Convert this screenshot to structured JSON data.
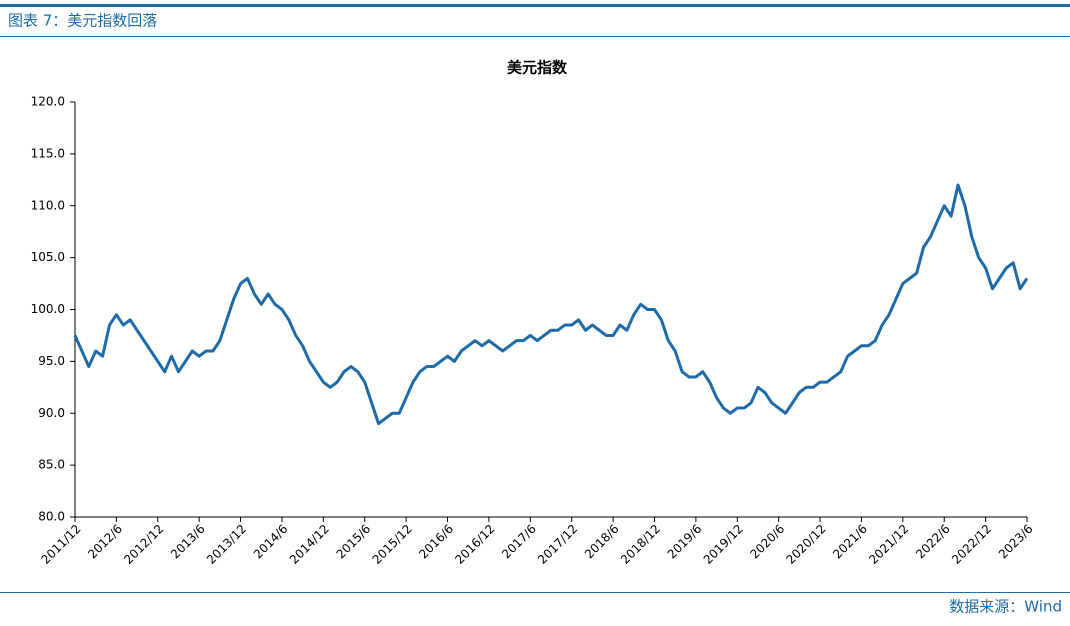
{
  "header": {
    "title": "图表 7：美元指数回落"
  },
  "source": "数据来源：Wind",
  "chart_data": {
    "type": "line",
    "title": "美元指数",
    "color": "#1f6aa8",
    "categories": [
      "2011/12",
      null,
      null,
      null,
      null,
      null,
      "2012/6",
      null,
      null,
      null,
      null,
      null,
      "2012/12",
      null,
      null,
      null,
      null,
      null,
      "2013/6",
      null,
      null,
      null,
      null,
      null,
      "2013/12",
      null,
      null,
      null,
      null,
      null,
      "2014/6",
      null,
      null,
      null,
      null,
      null,
      "2014/12",
      null,
      null,
      null,
      null,
      null,
      "2015/6",
      null,
      null,
      null,
      null,
      null,
      "2015/12",
      null,
      null,
      null,
      null,
      null,
      "2016/6",
      null,
      null,
      null,
      null,
      null,
      "2016/12",
      null,
      null,
      null,
      null,
      null,
      "2017/6",
      null,
      null,
      null,
      null,
      null,
      "2017/12",
      null,
      null,
      null,
      null,
      null,
      "2018/6",
      null,
      null,
      null,
      null,
      null,
      "2018/12",
      null,
      null,
      null,
      null,
      null,
      "2019/6",
      null,
      null,
      null,
      null,
      null,
      "2019/12",
      null,
      null,
      null,
      null,
      null,
      "2020/6",
      null,
      null,
      null,
      null,
      null,
      "2020/12",
      null,
      null,
      null,
      null,
      null,
      "2021/6",
      null,
      null,
      null,
      null,
      null,
      "2021/12",
      null,
      null,
      null,
      null,
      null,
      "2022/6",
      null,
      null,
      null,
      null,
      null,
      "2022/12",
      null,
      null,
      null,
      null,
      null,
      "2023/6"
    ],
    "values": [
      97.5,
      96.0,
      94.5,
      96.0,
      95.5,
      98.5,
      99.5,
      98.5,
      99.0,
      98.0,
      97.0,
      96.0,
      95.0,
      94.0,
      95.5,
      94.0,
      95.0,
      96.0,
      95.5,
      96.0,
      96.0,
      97.0,
      99.0,
      101.0,
      102.5,
      103.0,
      101.5,
      100.5,
      101.5,
      100.5,
      100.0,
      99.0,
      97.5,
      96.5,
      95.0,
      94.0,
      93.0,
      92.5,
      93.0,
      94.0,
      94.5,
      94.0,
      93.0,
      91.0,
      89.0,
      89.5,
      90.0,
      90.0,
      91.5,
      93.0,
      94.0,
      94.5,
      94.5,
      95.0,
      95.5,
      95.0,
      96.0,
      96.5,
      97.0,
      96.5,
      97.0,
      96.5,
      96.0,
      96.5,
      97.0,
      97.0,
      97.5,
      97.0,
      97.5,
      98.0,
      98.0,
      98.5,
      98.5,
      99.0,
      98.0,
      98.5,
      98.0,
      97.5,
      97.5,
      98.5,
      98.0,
      99.5,
      100.5,
      100.0,
      100.0,
      99.0,
      97.0,
      96.0,
      94.0,
      93.5,
      93.5,
      94.0,
      93.0,
      91.5,
      90.5,
      90.0,
      90.5,
      90.5,
      91.0,
      92.5,
      92.0,
      91.0,
      90.5,
      90.0,
      91.0,
      92.0,
      92.5,
      92.5,
      93.0,
      93.0,
      93.5,
      94.0,
      95.5,
      96.0,
      96.5,
      96.5,
      97.0,
      98.5,
      99.5,
      101.0,
      102.5,
      103.0,
      103.5,
      106.0,
      107.0,
      108.5,
      110.0,
      109.0,
      112.0,
      110.0,
      107.0,
      105.0,
      104.0,
      102.0,
      103.0,
      104.0,
      104.5,
      102.0,
      103.0
    ],
    "ylim": [
      80,
      120
    ],
    "yticks": [
      {
        "value": 80,
        "label": "80.0"
      },
      {
        "value": 85,
        "label": "85.0"
      },
      {
        "value": 90,
        "label": "90.0"
      },
      {
        "value": 95,
        "label": "95.0"
      },
      {
        "value": 100,
        "label": "100.0"
      },
      {
        "value": 105,
        "label": "105.0"
      },
      {
        "value": 110,
        "label": "110.0"
      },
      {
        "value": 115,
        "label": "115.0"
      },
      {
        "value": 120,
        "label": "120.0"
      }
    ],
    "grid": false
  }
}
